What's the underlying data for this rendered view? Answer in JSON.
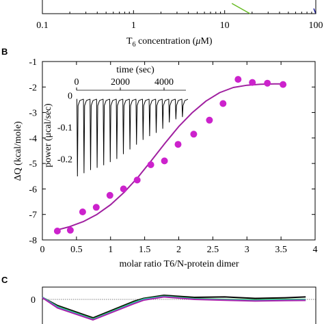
{
  "panels": {
    "a": {
      "xlabel_prefix": "T",
      "xlabel_sub": "6",
      "xlabel_suffix": " concentration (",
      "xlabel_unit_mu": "μ",
      "xlabel_unit_rest": "M)",
      "x_tick_labels": [
        "0.1",
        "1",
        "10",
        "100"
      ]
    },
    "b": {
      "label": "B",
      "inset_xlabel": "time (sec)",
      "inset_ylabel": "power (μcal/sec)",
      "inset_x_tick_labels": [
        "0",
        "2000",
        "4000"
      ],
      "inset_y_tick_labels": [
        "0",
        "-0.1",
        "-0.2"
      ]
    },
    "c": {
      "label": "C",
      "y_tick_labels": [
        "0"
      ]
    }
  },
  "chart_data": [
    {
      "type": "line",
      "xscale": "log",
      "xlim": [
        0.1,
        100
      ],
      "xlabel": "T6 concentration (μM)",
      "series": [
        {
          "color": "#66bb22",
          "x": [
            12,
            19
          ],
          "y": [
            0.6,
            0
          ]
        },
        {
          "color": "#1a1aa0",
          "x": [
            95,
            100
          ],
          "y": [
            0.3,
            0
          ]
        }
      ]
    },
    {
      "type": "scatter",
      "xlabel": "molar ratio T6/N-protein dimer",
      "ylabel": "ΔQ (kcal/mole)",
      "xlim": [
        0,
        4
      ],
      "ylim": [
        -8,
        -1
      ],
      "x_ticks": [
        0,
        0.5,
        1,
        1.5,
        2,
        2.5,
        3,
        3.5,
        4
      ],
      "x_tick_labels": [
        "0",
        "0.5",
        "1",
        "1.5",
        "2",
        "2.5",
        "3",
        "3.5",
        "4"
      ],
      "y_ticks": [
        -1,
        -2,
        -3,
        -4,
        -5,
        -6,
        -7,
        -8
      ],
      "y_tick_labels": [
        "-1",
        "-2",
        "-3",
        "-4",
        "-5",
        "-6",
        "-7",
        "-8"
      ],
      "marker_color": "#cc22cc",
      "points": {
        "x": [
          0.22,
          0.41,
          0.59,
          0.79,
          0.99,
          1.19,
          1.39,
          1.59,
          1.79,
          1.99,
          2.22,
          2.45,
          2.65,
          2.87,
          3.08,
          3.3,
          3.53
        ],
        "y": [
          -7.65,
          -7.62,
          -6.9,
          -6.72,
          -6.25,
          -6.0,
          -5.65,
          -5.05,
          -4.9,
          -4.25,
          -3.85,
          -3.3,
          -2.65,
          -1.7,
          -1.82,
          -1.85,
          -1.9
        ]
      },
      "fit": {
        "color": "#a020a0",
        "x": [
          0.2,
          0.4,
          0.6,
          0.8,
          1.0,
          1.2,
          1.4,
          1.6,
          1.8,
          2.0,
          2.2,
          2.4,
          2.6,
          2.8,
          3.0,
          3.2,
          3.4,
          3.55
        ],
        "y": [
          -7.62,
          -7.48,
          -7.28,
          -7.0,
          -6.62,
          -6.13,
          -5.55,
          -4.88,
          -4.2,
          -3.55,
          -3.0,
          -2.55,
          -2.22,
          -2.02,
          -1.93,
          -1.89,
          -1.88,
          -1.88
        ]
      },
      "inset": {
        "type": "line",
        "xlabel": "time (sec)",
        "ylabel": "power (μcal/sec)",
        "xlim": [
          0,
          5000
        ],
        "ylim": [
          -0.27,
          0.01
        ],
        "x_ticks": [
          0,
          2000,
          4000
        ],
        "y_ticks": [
          0,
          -0.1,
          -0.2
        ],
        "injection_times": [
          0,
          300,
          600,
          900,
          1200,
          1500,
          1800,
          2100,
          2400,
          2700,
          3000,
          3300,
          3600,
          3900,
          4200,
          4500,
          4800
        ],
        "peak_values": [
          -0.255,
          -0.245,
          -0.235,
          -0.228,
          -0.22,
          -0.21,
          -0.2,
          -0.185,
          -0.17,
          -0.155,
          -0.14,
          -0.128,
          -0.118,
          -0.105,
          -0.085,
          -0.075,
          -0.068
        ],
        "baseline": -0.012
      }
    },
    {
      "type": "line",
      "ylim": [
        -1,
        0.4
      ],
      "y_ticks": [
        0
      ],
      "series": [
        {
          "color": "#000000",
          "x": [
            0,
            0.15,
            0.5,
            0.9,
            1.0,
            1.2,
            1.5,
            1.8,
            2.1,
            2.4,
            2.6
          ],
          "y": [
            0.1,
            -0.3,
            -0.9,
            -0.1,
            0.05,
            0.2,
            0.1,
            0.12,
            0.05,
            0.08,
            0.12
          ]
        },
        {
          "color": "#33bb44",
          "x": [
            0,
            0.15,
            0.5,
            0.9,
            1.0,
            1.2,
            1.5,
            1.8,
            2.1,
            2.4,
            2.6
          ],
          "y": [
            0.1,
            -0.35,
            -0.95,
            -0.15,
            0.02,
            0.16,
            0.04,
            0.0,
            -0.02,
            0.0,
            0.0
          ]
        },
        {
          "color": "#33bbcc",
          "x": [
            0,
            0.15,
            0.5,
            0.9,
            1.0,
            1.2,
            1.5,
            1.8,
            2.1,
            2.4,
            2.6
          ],
          "y": [
            0.1,
            -0.38,
            -0.98,
            -0.18,
            0.0,
            0.14,
            0.02,
            -0.02,
            -0.05,
            -0.03,
            -0.02
          ]
        },
        {
          "color": "#aa22aa",
          "x": [
            0,
            0.15,
            0.5,
            0.9,
            1.0,
            1.2,
            1.5,
            1.8,
            2.1,
            2.4,
            2.6
          ],
          "y": [
            0.08,
            -0.42,
            -1.0,
            -0.22,
            -0.04,
            0.12,
            0.0,
            -0.04,
            -0.08,
            -0.06,
            -0.05
          ]
        }
      ]
    }
  ]
}
